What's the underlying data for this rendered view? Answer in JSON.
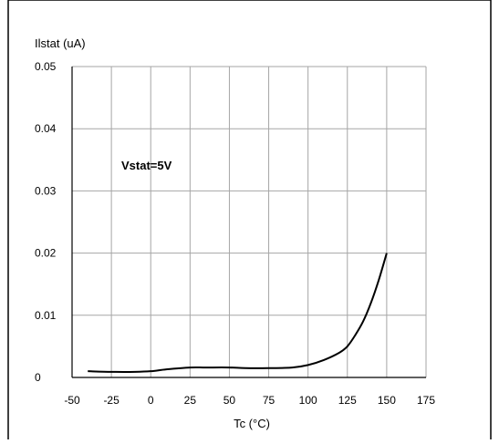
{
  "chart_data": {
    "type": "line",
    "title": "",
    "ylabel": "Ilstat (uA)",
    "xlabel": "Tc (°C)",
    "annotation": "Vstat=5V",
    "xlim": [
      -50,
      175
    ],
    "ylim": [
      0,
      0.05
    ],
    "x_ticks": [
      "-50",
      "-25",
      "0",
      "25",
      "50",
      "75",
      "100",
      "125",
      "150",
      "175"
    ],
    "y_ticks": [
      "0",
      "0.01",
      "0.02",
      "0.03",
      "0.04",
      "0.05"
    ],
    "grid": true,
    "series": [
      {
        "x": [
          -40,
          -25,
          -10,
          0,
          10,
          25,
          35,
          50,
          60,
          75,
          90,
          100,
          110,
          120,
          125,
          130,
          135,
          140,
          145,
          150
        ],
        "y": [
          0.001,
          0.0009,
          0.0009,
          0.001,
          0.0013,
          0.0016,
          0.0016,
          0.0016,
          0.0015,
          0.0015,
          0.0016,
          0.002,
          0.0028,
          0.004,
          0.005,
          0.0068,
          0.009,
          0.012,
          0.0157,
          0.02
        ]
      }
    ],
    "line_color": "#000000",
    "grid_color": "#a6a6a6"
  }
}
